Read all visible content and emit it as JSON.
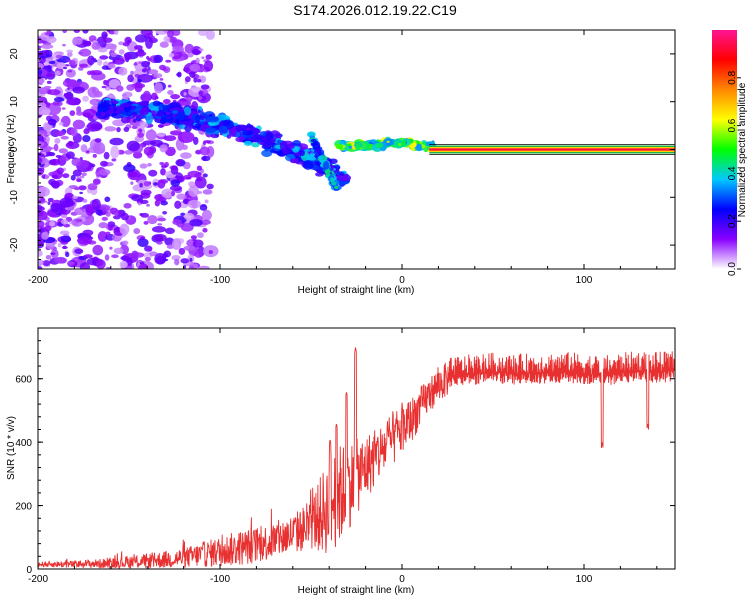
{
  "figure": {
    "title": "S174.2026.012.19.22.C19"
  },
  "chart_data": [
    {
      "type": "heatmap",
      "title": "",
      "xlabel": "Height of straight line (km)",
      "ylabel": "Frequency (Hz)",
      "xlim": [
        -200,
        150
      ],
      "ylim": [
        -25,
        25
      ],
      "x_ticks": [
        -200,
        -100,
        0,
        100
      ],
      "x_tick_labels": [
        "-200",
        "-100",
        "0",
        "100"
      ],
      "y_ticks": [
        -20,
        -10,
        0,
        10,
        20
      ],
      "y_tick_labels": [
        "-20",
        "-10",
        "0",
        "10",
        "20"
      ],
      "colorbar": {
        "label": "Normalized spectral amplitude",
        "range": [
          0,
          1
        ],
        "ticks": [
          0.0,
          0.2,
          0.4,
          0.6,
          0.8
        ],
        "tick_labels": [
          "0.0",
          "0.2",
          "0.4",
          "0.6",
          "0.8"
        ],
        "colormap": [
          "#ffffff",
          "#8800ff",
          "#0000ff",
          "#00c8ff",
          "#00ff00",
          "#ffff00",
          "#ff8800",
          "#ff0000",
          "#ff1493"
        ]
      },
      "features": [
        {
          "name": "noise-scatter",
          "x_range": [
            -200,
            -120
          ],
          "freq_range": [
            -25,
            25
          ],
          "amplitude": 0.05
        },
        {
          "name": "descending-band",
          "x_range": [
            -160,
            -30
          ],
          "freq_start": 10,
          "freq_end": -8,
          "amplitude": 0.3
        },
        {
          "name": "flattening-band",
          "x_range": [
            -30,
            15
          ],
          "freq": 1,
          "amplitude": 0.5
        },
        {
          "name": "stable-line",
          "x_range": [
            15,
            150
          ],
          "freq": 0,
          "amplitude": 1.0
        }
      ]
    },
    {
      "type": "line",
      "title": "",
      "xlabel": "Height of straight line (km)",
      "ylabel": "SNR (10 * v/v)",
      "xlim": [
        -200,
        150
      ],
      "ylim": [
        0,
        760
      ],
      "x_ticks": [
        -200,
        -100,
        0,
        100
      ],
      "x_tick_labels": [
        "-200",
        "-100",
        "0",
        "100"
      ],
      "y_ticks": [
        0,
        200,
        400,
        600
      ],
      "y_tick_labels": [
        "0",
        "200",
        "400",
        "600"
      ],
      "series": [
        {
          "name": "SNR",
          "color": "#e83030",
          "x": [
            -200,
            -180,
            -160,
            -140,
            -120,
            -110,
            -100,
            -90,
            -80,
            -70,
            -60,
            -50,
            -45,
            -40,
            -35,
            -30,
            -25,
            -20,
            -15,
            -10,
            -5,
            0,
            5,
            10,
            15,
            20,
            25,
            30,
            40,
            50,
            60,
            70,
            80,
            90,
            100,
            110,
            120,
            130,
            140,
            150
          ],
          "mean": [
            15,
            15,
            18,
            25,
            35,
            45,
            55,
            65,
            75,
            90,
            110,
            140,
            170,
            200,
            230,
            260,
            290,
            320,
            350,
            380,
            410,
            440,
            470,
            510,
            550,
            580,
            600,
            610,
            615,
            620,
            615,
            618,
            620,
            622,
            618,
            610,
            620,
            625,
            622,
            625
          ],
          "amplitude": [
            10,
            15,
            20,
            30,
            40,
            50,
            60,
            70,
            70,
            75,
            80,
            100,
            150,
            200,
            200,
            180,
            150,
            130,
            120,
            110,
            110,
            100,
            90,
            80,
            70,
            70,
            70,
            70,
            70,
            70,
            70,
            70,
            70,
            70,
            70,
            70,
            70,
            70,
            70,
            70
          ],
          "spikes": [
            {
              "x": -25.5,
              "value": 700
            },
            {
              "x": -30.5,
              "value": 560
            },
            {
              "x": -36,
              "value": 460
            },
            {
              "x": -39.5,
              "value": 410
            },
            {
              "x": 110,
              "value": 400
            },
            {
              "x": 135,
              "value": 460
            }
          ]
        }
      ]
    }
  ]
}
